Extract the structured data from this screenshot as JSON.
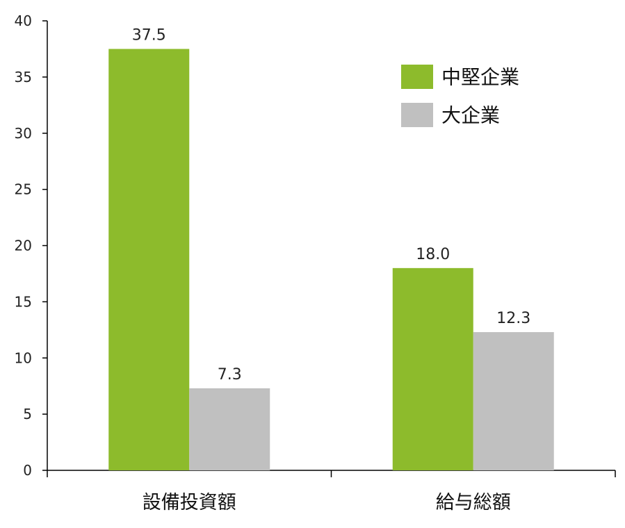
{
  "chart_data": {
    "type": "bar",
    "title": "",
    "xlabel": "",
    "ylabel": "",
    "categories": [
      "設備投資額",
      "給与総額"
    ],
    "ylim": [
      0,
      40
    ],
    "yticks": [
      0,
      5,
      10,
      15,
      20,
      25,
      30,
      35,
      40
    ],
    "ytick_labels": [
      "0",
      "5",
      "10",
      "15",
      "20",
      "25",
      "30",
      "35",
      "40"
    ],
    "series": [
      {
        "name": "中堅企業",
        "values": [
          37.5,
          18.0
        ],
        "labels": [
          "37.5",
          "18.0"
        ],
        "color": "#8dbb2c"
      },
      {
        "name": "大企業",
        "values": [
          7.3,
          12.3
        ],
        "labels": [
          "7.3",
          "12.3"
        ],
        "color": "#c0c0c0"
      }
    ],
    "legend": {
      "position": "top-right"
    },
    "grid": false
  }
}
